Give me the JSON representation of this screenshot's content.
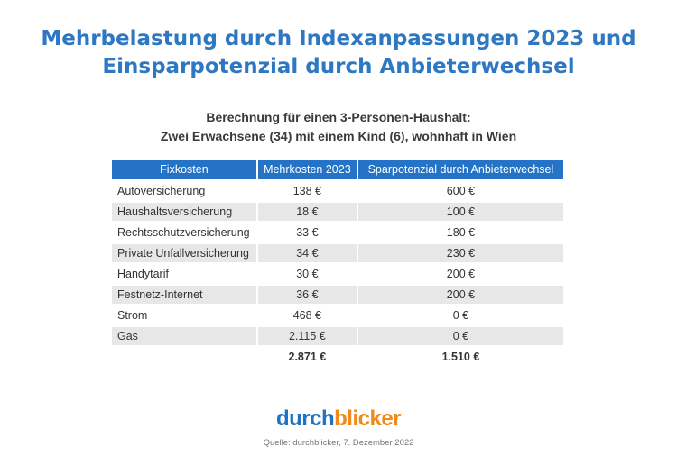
{
  "title": {
    "line1": "Mehrbelastung durch Indexanpassungen 2023 und",
    "line2": "Einsparpotenzial durch Anbieterwechsel"
  },
  "subtitle": {
    "line1": "Berechnung für einen 3-Personen-Haushalt:",
    "line2": "Zwei Erwachsene (34) mit einem Kind (6), wohnhaft in Wien"
  },
  "table": {
    "headers": [
      "Fixkosten",
      "Mehrkosten 2023",
      "Sparpotenzial durch Anbieterwechsel"
    ],
    "rows": [
      [
        "Autoversicherung",
        "138 €",
        "600 €"
      ],
      [
        "Haushaltsversicherung",
        "18 €",
        "100 €"
      ],
      [
        "Rechtsschutzversicherung",
        "33 €",
        "180 €"
      ],
      [
        "Private Unfallversicherung",
        "34 €",
        "230 €"
      ],
      [
        "Handytarif",
        "30 €",
        "200 €"
      ],
      [
        "Festnetz-Internet",
        "36 €",
        "200 €"
      ],
      [
        "Strom",
        "468 €",
        "0 €"
      ],
      [
        "Gas",
        "2.115 €",
        "0 €"
      ]
    ],
    "total": [
      "",
      "2.871 €",
      "1.510 €"
    ]
  },
  "logo": {
    "part1": "durch",
    "part2": "blicker"
  },
  "source": "Quelle: durchblicker, 7. Dezember 2022",
  "colors": {
    "title": "#2e78c3",
    "header_bg": "#2473c6",
    "row_shade": "#e7e7e7",
    "logo_blue": "#1f72c4",
    "logo_orange": "#f08a1c"
  }
}
